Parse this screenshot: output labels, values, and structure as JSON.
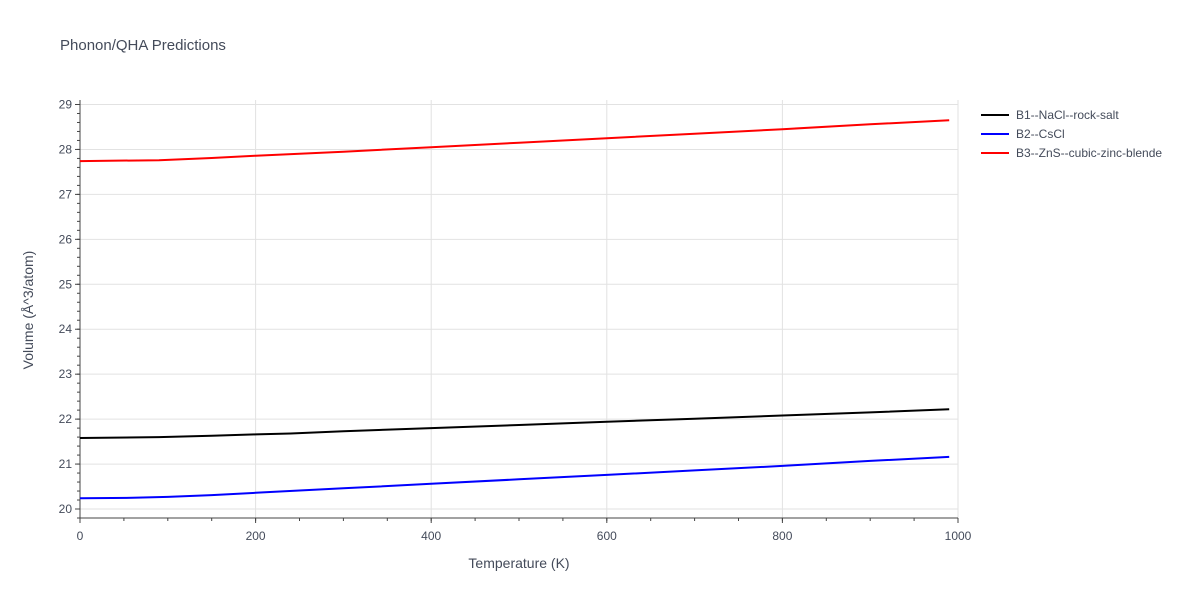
{
  "chart_data": {
    "type": "line",
    "title": "Phonon/QHA Predictions",
    "xlabel": "Temperature (K)",
    "ylabel": "Volume (Å^3/atom)",
    "xlim": [
      0,
      1000
    ],
    "ylim": [
      19.8,
      29.1
    ],
    "xticks": [
      0,
      200,
      400,
      600,
      800,
      1000
    ],
    "yticks": [
      20,
      21,
      22,
      23,
      24,
      25,
      26,
      27,
      28,
      29
    ],
    "grid": true,
    "legend_position": "top-right",
    "series": [
      {
        "name": "B1--NaCl--rock-salt",
        "color": "#000000",
        "x": [
          0,
          90,
          150,
          200,
          240,
          300,
          400,
          500,
          600,
          700,
          800,
          900,
          990
        ],
        "y": [
          21.58,
          21.6,
          21.63,
          21.66,
          21.68,
          21.73,
          21.8,
          21.87,
          21.94,
          22.01,
          22.08,
          22.15,
          22.22
        ]
      },
      {
        "name": "B2--CsCl",
        "color": "#0000ff",
        "x": [
          0,
          60,
          100,
          150,
          200,
          300,
          400,
          500,
          600,
          700,
          800,
          900,
          990
        ],
        "y": [
          20.24,
          20.25,
          20.27,
          20.31,
          20.36,
          20.46,
          20.56,
          20.66,
          20.76,
          20.86,
          20.96,
          21.07,
          21.16
        ]
      },
      {
        "name": "B3--ZnS--cubic-zinc-blende",
        "color": "#ff0000",
        "x": [
          0,
          90,
          150,
          200,
          300,
          400,
          500,
          600,
          700,
          800,
          900,
          990
        ],
        "y": [
          27.74,
          27.76,
          27.81,
          27.86,
          27.95,
          28.05,
          28.15,
          28.25,
          28.35,
          28.45,
          28.56,
          28.65
        ]
      }
    ]
  }
}
